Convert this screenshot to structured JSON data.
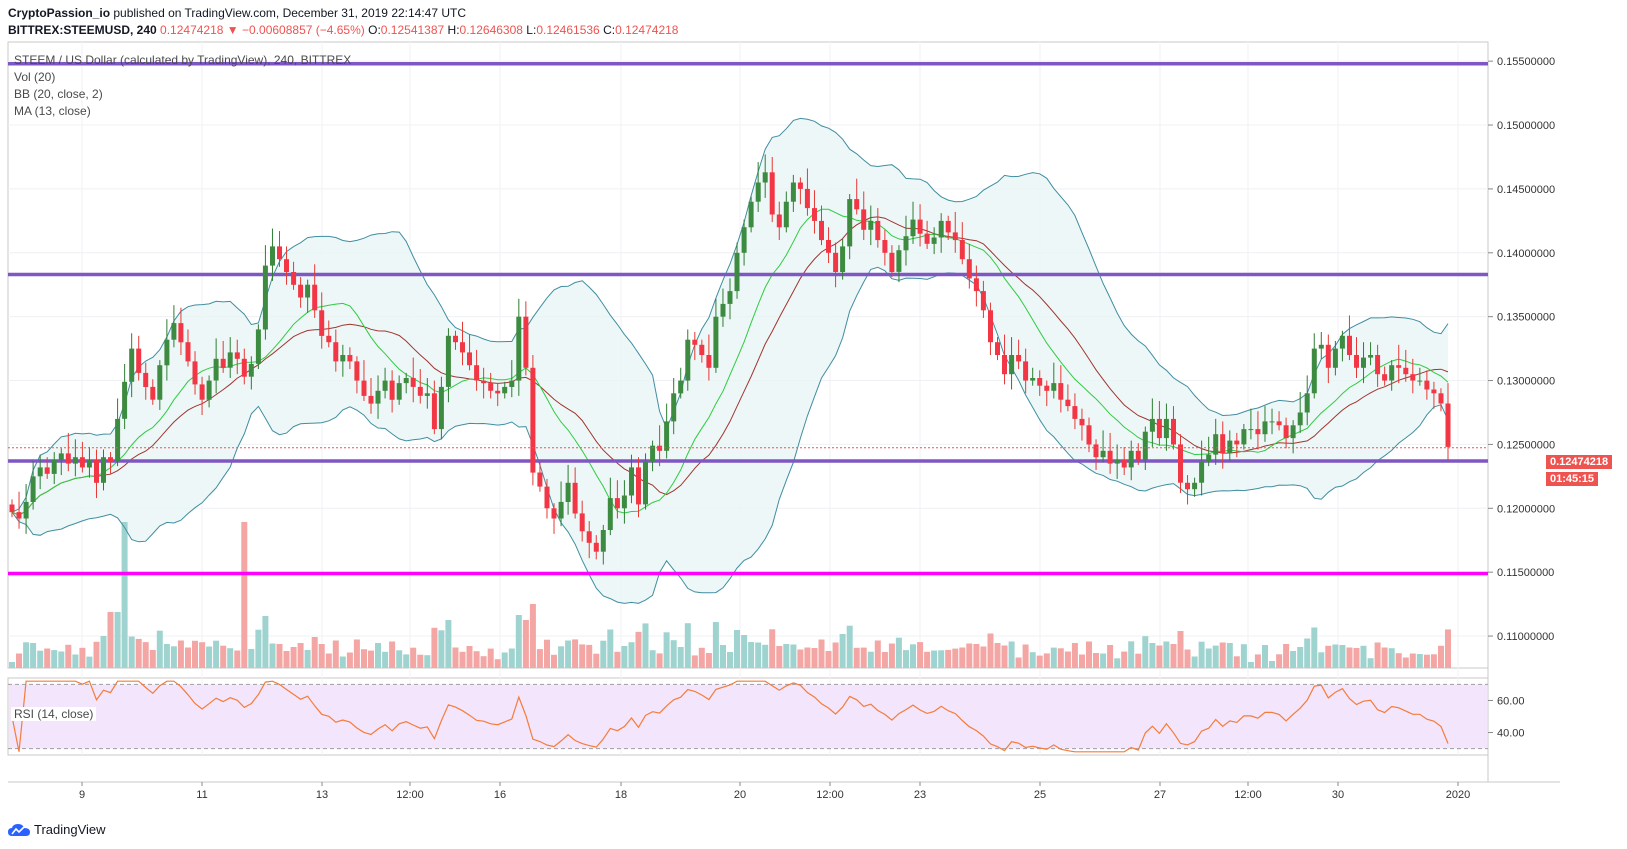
{
  "header": {
    "author": "CryptoPassion_io",
    "published_text": " published on TradingView.com, December 31, 2019 22:14:47 UTC",
    "symbol": "BITTREX:STEEMUSD, 240",
    "last": "0.12474218",
    "change": "▼ −0.00608857 (−4.65%)",
    "o_label": "O:",
    "o_value": "0.12541387",
    "h_label": "H:",
    "h_value": "0.12646308",
    "l_label": "L:",
    "l_value": "0.12461536",
    "c_label": "C:",
    "c_value": "0.12474218"
  },
  "legend": {
    "title": "STEEM / US Dollar (calculated by TradingView), 240, BITTREX",
    "vol": "Vol (20)",
    "bb": "BB (20, close, 2)",
    "ma": "MA (13, close)",
    "rsi": "RSI (14, close)"
  },
  "price_tag": {
    "price": "0.12474218",
    "countdown": "01:45:15"
  },
  "footer": {
    "brand": "TradingView"
  },
  "colors": {
    "up": "#53a55a",
    "down": "#ef5350",
    "bb_fill": "#e8f5f5",
    "bb_line": "#3f8ea0",
    "ma": "#2ecc40",
    "basis": "#a0352f",
    "support": "#7e57c2",
    "magenta": "#ff00ff",
    "rsi_bg": "#f3e5fb",
    "rsi_line": "#f57c3a"
  },
  "chart_data": {
    "type": "candlestick",
    "price_axis": {
      "min": 0.1075,
      "max": 0.1565,
      "ticks": [
        "0.15500000",
        "0.15000000",
        "0.14500000",
        "0.14000000",
        "0.13500000",
        "0.13000000",
        "0.12500000",
        "0.12000000",
        "0.11500000",
        "0.11000000"
      ]
    },
    "time_axis_labels": [
      "9",
      "11",
      "13",
      "12:00",
      "16",
      "18",
      "20",
      "12:00",
      "23",
      "25",
      "27",
      "12:00",
      "30",
      "2020"
    ],
    "horizontal_lines": [
      {
        "price": 0.1548,
        "color": "support"
      },
      {
        "price": 0.1383,
        "color": "support"
      },
      {
        "price": 0.1237,
        "color": "support"
      },
      {
        "price": 0.1149,
        "color": "magenta"
      }
    ],
    "rsi_axis": {
      "min": 26,
      "max": 74,
      "ticks": [
        "60.00",
        "40.00"
      ],
      "bands": [
        70,
        30
      ]
    },
    "closes": [
      0.1197,
      0.1192,
      0.1205,
      0.1225,
      0.1232,
      0.1227,
      0.1238,
      0.1243,
      0.1235,
      0.124,
      0.1232,
      0.1238,
      0.122,
      0.124,
      0.1237,
      0.127,
      0.1299,
      0.1325,
      0.1306,
      0.1295,
      0.1285,
      0.1312,
      0.1332,
      0.1345,
      0.133,
      0.1315,
      0.1297,
      0.1285,
      0.13,
      0.1317,
      0.131,
      0.1322,
      0.1317,
      0.1303,
      0.1313,
      0.134,
      0.139,
      0.1405,
      0.1395,
      0.1385,
      0.1375,
      0.1365,
      0.1375,
      0.1355,
      0.1335,
      0.133,
      0.1315,
      0.132,
      0.1315,
      0.13,
      0.1288,
      0.1282,
      0.1292,
      0.13,
      0.1285,
      0.1298,
      0.1302,
      0.1295,
      0.1288,
      0.129,
      0.1262,
      0.1295,
      0.1335,
      0.133,
      0.1322,
      0.1312,
      0.13,
      0.1298,
      0.1292,
      0.129,
      0.1295,
      0.13,
      0.135,
      0.131,
      0.1228,
      0.1217,
      0.12,
      0.1192,
      0.1205,
      0.122,
      0.1196,
      0.1182,
      0.1173,
      0.1166,
      0.1183,
      0.1208,
      0.12,
      0.121,
      0.1232,
      0.1203,
      0.1237,
      0.1249,
      0.1245,
      0.1268,
      0.129,
      0.13,
      0.1332,
      0.1328,
      0.132,
      0.131,
      0.135,
      0.136,
      0.137,
      0.14,
      0.142,
      0.144,
      0.1455,
      0.1463,
      0.143,
      0.142,
      0.144,
      0.1455,
      0.145,
      0.1435,
      0.1425,
      0.141,
      0.14,
      0.1385,
      0.1405,
      0.1442,
      0.1434,
      0.1418,
      0.1425,
      0.141,
      0.14,
      0.1385,
      0.1402,
      0.1413,
      0.1426,
      0.1415,
      0.1407,
      0.1412,
      0.1425,
      0.1416,
      0.141,
      0.1395,
      0.138,
      0.137,
      0.1355,
      0.133,
      0.132,
      0.1305,
      0.132,
      0.1315,
      0.13,
      0.1302,
      0.1296,
      0.1292,
      0.1298,
      0.1285,
      0.128,
      0.127,
      0.1265,
      0.125,
      0.124,
      0.1245,
      0.1235,
      0.1238,
      0.1232,
      0.1245,
      0.1238,
      0.126,
      0.127,
      0.1255,
      0.127,
      0.125,
      0.122,
      0.1215,
      0.122,
      0.1237,
      0.1242,
      0.1258,
      0.1243,
      0.1253,
      0.125,
      0.1262,
      0.1262,
      0.1258,
      0.1268,
      0.1268,
      0.1265,
      0.1255,
      0.1265,
      0.1275,
      0.129,
      0.1325,
      0.1328,
      0.131,
      0.1325,
      0.1335,
      0.132,
      0.131,
      0.1318,
      0.132,
      0.1305,
      0.13,
      0.1312,
      0.131,
      0.1305,
      0.13,
      0.13,
      0.1293,
      0.129,
      0.1282,
      0.1248
    ]
  }
}
